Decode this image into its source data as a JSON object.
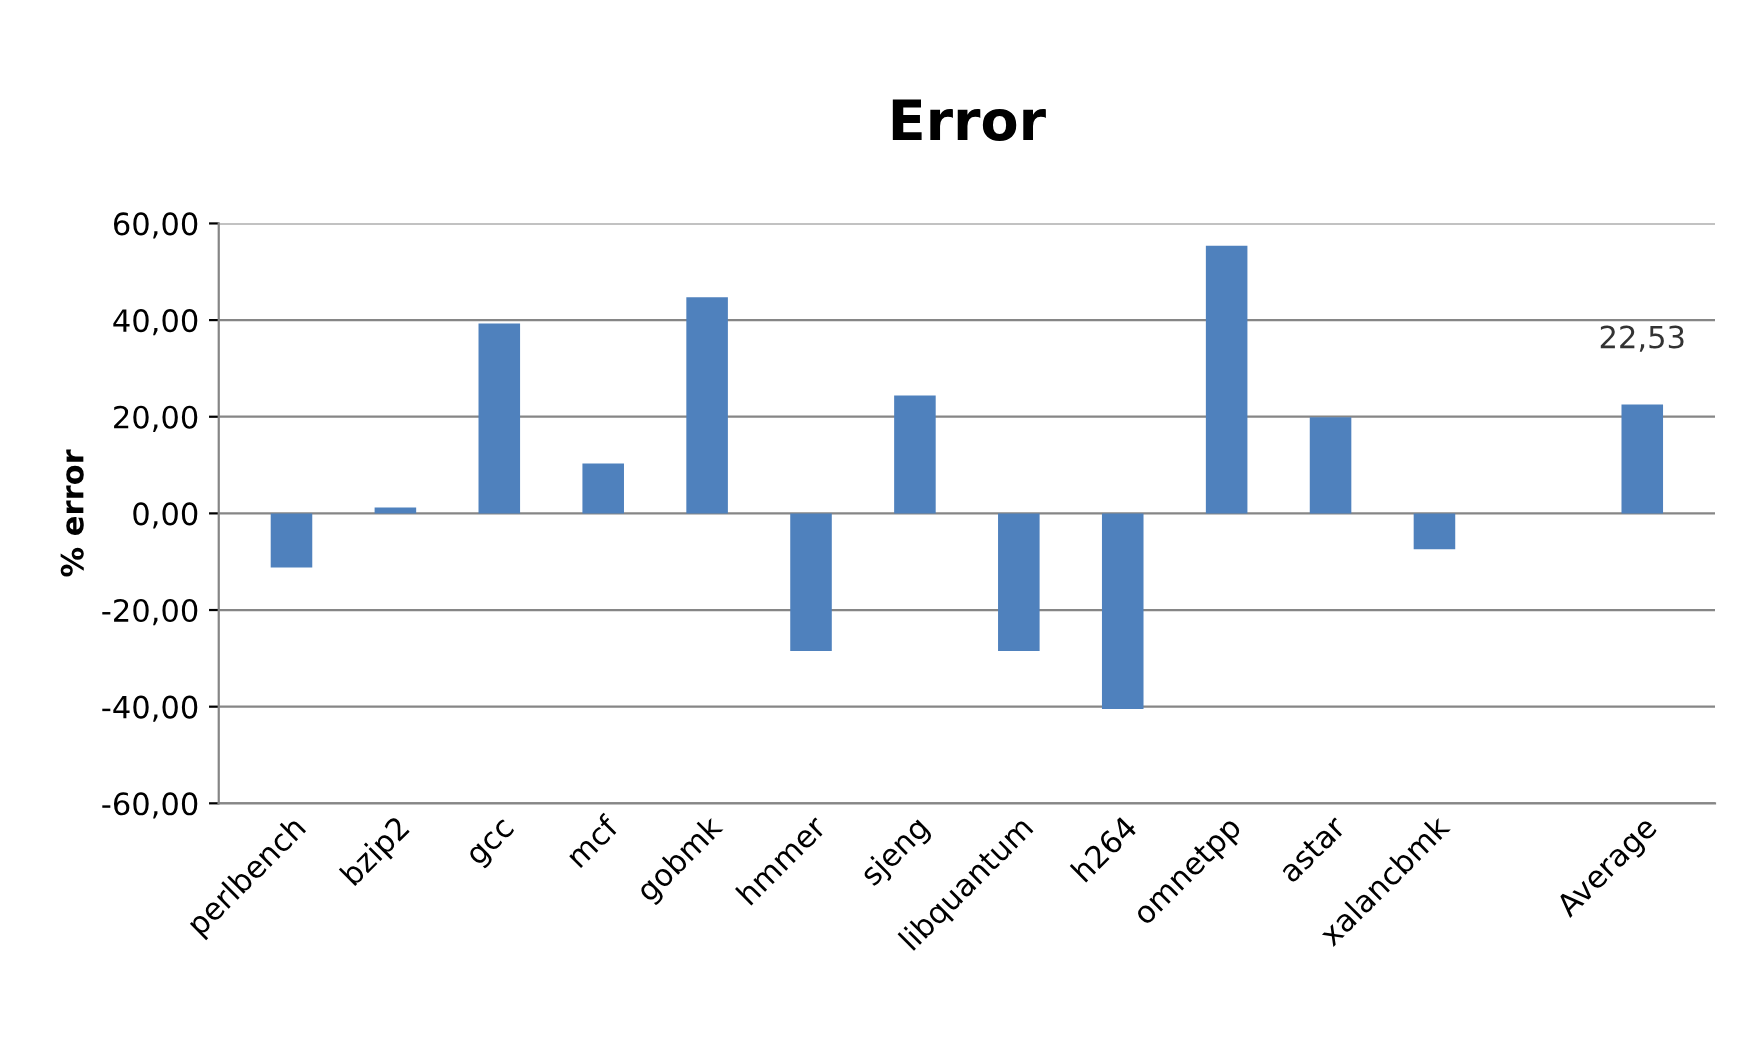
{
  "chart_data": {
    "type": "bar",
    "title": "Error",
    "ylabel": "% error",
    "categories": [
      "perlbench",
      "bzip2",
      "gcc",
      "mcf",
      "gobmk",
      "hmmer",
      "sjeng",
      "libquantum",
      "h264",
      "omnetpp",
      "astar",
      "xalancbmk",
      null,
      "Average"
    ],
    "values": [
      -11.2,
      1.2,
      39.3,
      10.3,
      44.7,
      -28.5,
      24.4,
      -28.5,
      -40.5,
      55.4,
      19.9,
      -7.4,
      null,
      22.53
    ],
    "value_labels": [
      null,
      null,
      null,
      null,
      null,
      null,
      null,
      null,
      null,
      null,
      null,
      null,
      null,
      "22,53"
    ],
    "color": "#4f81bd",
    "ylim": [
      -60,
      60
    ],
    "yticks": [
      {
        "value": -60,
        "label": "-60,00"
      },
      {
        "value": -40,
        "label": "-40,00"
      },
      {
        "value": -20,
        "label": "-20,00"
      },
      {
        "value": 0,
        "label": "0,00"
      },
      {
        "value": 20,
        "label": "20,00"
      },
      {
        "value": 40,
        "label": "40,00"
      },
      {
        "value": 60,
        "label": "60,00"
      }
    ],
    "grid": "y",
    "legend": false
  }
}
